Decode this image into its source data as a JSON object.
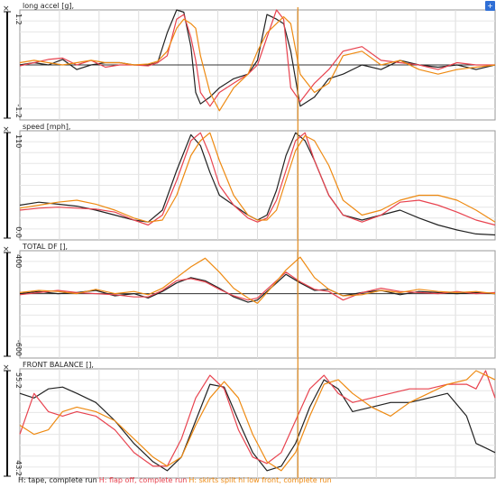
{
  "legend": [
    {
      "label": "H: tape, complete run",
      "color": "#222222"
    },
    {
      "label": "H: flap off, complete run",
      "color": "#e8434f"
    },
    {
      "label": "H: skirts split hi low front, complete run",
      "color": "#ee8a12"
    }
  ],
  "corner_button": "+",
  "cursor_x": 0.585,
  "chart_data": [
    {
      "type": "line",
      "title": "long accel [g],",
      "ylim": [
        -1.2,
        1.2
      ],
      "y_ticks": [
        "1.2",
        "-1.2"
      ],
      "grid": true,
      "zero_line": 0,
      "x": [
        0,
        0.03,
        0.06,
        0.09,
        0.12,
        0.15,
        0.18,
        0.21,
        0.24,
        0.27,
        0.29,
        0.31,
        0.33,
        0.345,
        0.36,
        0.37,
        0.38,
        0.4,
        0.42,
        0.45,
        0.48,
        0.5,
        0.52,
        0.54,
        0.555,
        0.57,
        0.59,
        0.62,
        0.65,
        0.68,
        0.72,
        0.76,
        0.8,
        0.84,
        0.88,
        0.92,
        0.96,
        1.0
      ],
      "series": [
        {
          "color": "#222222",
          "values": [
            0,
            0.05,
            0,
            0.12,
            -0.1,
            0,
            0.05,
            0.05,
            0,
            0,
            0.05,
            0.7,
            1.2,
            1.15,
            0.4,
            -0.6,
            -0.85,
            -0.7,
            -0.5,
            -0.3,
            -0.2,
            0.1,
            1.1,
            1.0,
            0.9,
            0.3,
            -0.9,
            -0.7,
            -0.3,
            -0.2,
            0.0,
            -0.1,
            0.1,
            0,
            -0.05,
            0,
            -0.1,
            0
          ]
        },
        {
          "color": "#e8434f",
          "values": [
            -0.02,
            0.05,
            0.12,
            0.15,
            0,
            0.1,
            -0.05,
            0,
            0,
            -0.02,
            0.05,
            0.2,
            1.0,
            1.1,
            0.6,
            0.1,
            -0.6,
            -0.9,
            -0.6,
            -0.4,
            -0.2,
            0,
            0.6,
            1.2,
            1.0,
            -0.5,
            -0.8,
            -0.4,
            -0.1,
            0.3,
            0.4,
            0.1,
            0.05,
            0,
            -0.1,
            0.05,
            0,
            0
          ]
        },
        {
          "color": "#ee8a12",
          "values": [
            0.05,
            0.1,
            0.05,
            0.0,
            0.05,
            0.1,
            0.05,
            0.05,
            0,
            0.02,
            0.08,
            0.3,
            0.8,
            1.0,
            0.9,
            0.8,
            0.2,
            -0.6,
            -1.0,
            -0.5,
            -0.2,
            0.3,
            0.7,
            0.9,
            1.05,
            0.9,
            -0.2,
            -0.6,
            -0.4,
            0.2,
            0.3,
            0.0,
            0.1,
            -0.1,
            -0.2,
            -0.1,
            -0.05,
            0
          ]
        }
      ]
    },
    {
      "type": "line",
      "title": "speed [mph],",
      "ylim": [
        0,
        110
      ],
      "y_ticks": [
        "110",
        "0.0"
      ],
      "grid": true,
      "x": [
        0,
        0.04,
        0.08,
        0.12,
        0.16,
        0.2,
        0.24,
        0.27,
        0.3,
        0.33,
        0.36,
        0.38,
        0.4,
        0.42,
        0.45,
        0.48,
        0.5,
        0.52,
        0.54,
        0.56,
        0.58,
        0.6,
        0.62,
        0.65,
        0.68,
        0.72,
        0.76,
        0.8,
        0.84,
        0.88,
        0.92,
        0.96,
        1.0
      ],
      "series": [
        {
          "color": "#222222",
          "values": [
            35,
            38,
            36,
            34,
            30,
            25,
            20,
            18,
            30,
            70,
            106,
            95,
            68,
            45,
            35,
            25,
            20,
            25,
            50,
            85,
            108,
            100,
            80,
            45,
            25,
            20,
            25,
            30,
            22,
            15,
            10,
            6,
            5
          ]
        },
        {
          "color": "#e8434f",
          "values": [
            30,
            32,
            33,
            32,
            31,
            28,
            20,
            15,
            25,
            60,
            100,
            108,
            85,
            55,
            35,
            22,
            18,
            22,
            40,
            70,
            100,
            108,
            80,
            45,
            25,
            18,
            25,
            38,
            40,
            35,
            28,
            20,
            15
          ]
        },
        {
          "color": "#ee8a12",
          "values": [
            32,
            35,
            38,
            40,
            36,
            30,
            22,
            18,
            20,
            45,
            85,
            100,
            108,
            80,
            45,
            25,
            20,
            20,
            30,
            60,
            90,
            105,
            100,
            75,
            40,
            25,
            30,
            40,
            45,
            45,
            40,
            30,
            18
          ]
        }
      ]
    },
    {
      "type": "line",
      "title": "TOTAL DF [],",
      "ylim": [
        -600,
        400
      ],
      "y_ticks": [
        "400",
        "-600"
      ],
      "grid": true,
      "zero_line": 0,
      "x": [
        0,
        0.04,
        0.08,
        0.12,
        0.16,
        0.2,
        0.24,
        0.27,
        0.3,
        0.33,
        0.36,
        0.39,
        0.42,
        0.45,
        0.48,
        0.5,
        0.53,
        0.56,
        0.59,
        0.62,
        0.65,
        0.68,
        0.72,
        0.76,
        0.8,
        0.84,
        0.88,
        0.92,
        0.96,
        1.0
      ],
      "series": [
        {
          "color": "#222222",
          "values": [
            0,
            20,
            0,
            10,
            30,
            -20,
            0,
            -40,
            20,
            100,
            150,
            120,
            50,
            -30,
            -80,
            -60,
            60,
            180,
            100,
            30,
            40,
            -20,
            10,
            30,
            -10,
            20,
            10,
            0,
            10,
            0
          ]
        },
        {
          "color": "#e8434f",
          "values": [
            -10,
            10,
            30,
            10,
            0,
            -10,
            -30,
            -30,
            30,
            120,
            140,
            110,
            40,
            -20,
            -60,
            -40,
            80,
            200,
            110,
            40,
            20,
            -60,
            10,
            50,
            20,
            10,
            0,
            20,
            0,
            10
          ]
        },
        {
          "color": "#ee8a12",
          "values": [
            10,
            30,
            20,
            0,
            40,
            0,
            20,
            -10,
            50,
            150,
            250,
            330,
            200,
            50,
            -40,
            -90,
            60,
            220,
            340,
            150,
            40,
            -20,
            -10,
            30,
            10,
            40,
            20,
            10,
            20,
            0
          ]
        }
      ]
    },
    {
      "type": "line",
      "title": "FRONT BALANCE [],",
      "ylim": [
        43.2,
        55.2
      ],
      "y_ticks": [
        "55.2",
        "43.2"
      ],
      "grid": true,
      "x": [
        0,
        0.03,
        0.06,
        0.09,
        0.12,
        0.16,
        0.2,
        0.24,
        0.28,
        0.31,
        0.34,
        0.37,
        0.4,
        0.43,
        0.46,
        0.49,
        0.52,
        0.55,
        0.58,
        0.61,
        0.64,
        0.67,
        0.7,
        0.74,
        0.78,
        0.82,
        0.86,
        0.9,
        0.94,
        0.96,
        0.98,
        1.0
      ],
      "series": [
        {
          "color": "#222222",
          "values": [
            52.5,
            52.0,
            53.0,
            53.2,
            52.5,
            51.5,
            49.5,
            47.0,
            45.0,
            44.0,
            45.5,
            49.5,
            53.5,
            53.2,
            49.5,
            46.0,
            44.0,
            44.5,
            47.0,
            51.0,
            54.0,
            53.0,
            50.5,
            51.0,
            51.5,
            51.5,
            52.0,
            52.5,
            50.0,
            47.0,
            46.5,
            46.0
          ]
        },
        {
          "color": "#e8434f",
          "values": [
            48.0,
            52.5,
            50.5,
            50.0,
            50.5,
            50.0,
            48.5,
            46.0,
            44.5,
            44.5,
            47.5,
            52.0,
            54.5,
            53.0,
            48.5,
            45.5,
            44.8,
            46.0,
            49.5,
            53.0,
            54.5,
            52.5,
            51.5,
            52.0,
            52.5,
            53.0,
            53.0,
            53.5,
            53.5,
            53.0,
            55.0,
            52.0
          ]
        },
        {
          "color": "#ee8a12",
          "values": [
            49.0,
            48.0,
            48.5,
            50.5,
            51.0,
            50.5,
            49.5,
            47.5,
            45.5,
            44.5,
            45.5,
            49.0,
            52.0,
            53.8,
            52.0,
            48.0,
            45.0,
            44.0,
            46.0,
            50.0,
            53.5,
            54.0,
            52.5,
            51.0,
            50.0,
            51.5,
            52.5,
            53.5,
            54.0,
            55.0,
            54.5,
            54.0
          ]
        }
      ]
    }
  ]
}
